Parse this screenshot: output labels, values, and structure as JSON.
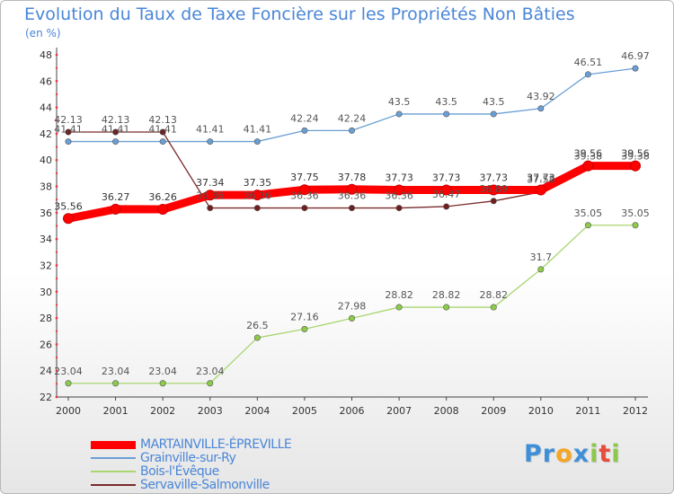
{
  "chart_data": {
    "type": "line",
    "title": "Evolution du Taux de Taxe Foncière sur les Propriétés Non Bâties",
    "subtitle": "(en %)",
    "x": [
      "2000",
      "2001",
      "2002",
      "2003",
      "2004",
      "2005",
      "2006",
      "2007",
      "2008",
      "2009",
      "2010",
      "2011",
      "2012"
    ],
    "ylim": [
      22,
      48
    ],
    "yticks": [
      22,
      24,
      26,
      28,
      30,
      32,
      34,
      36,
      38,
      40,
      42,
      44,
      46,
      48
    ],
    "grid": false,
    "series": [
      {
        "name": "MARTAINVILLE-ÉPREVILLE",
        "color": "#ff0000",
        "marker": "#ff0000",
        "emphasis": true,
        "values": [
          35.56,
          36.27,
          36.26,
          37.34,
          37.35,
          37.75,
          37.78,
          37.73,
          37.73,
          37.73,
          37.73,
          39.56,
          39.56
        ]
      },
      {
        "name": "Grainville-sur-Ry",
        "color": "#6a9fd4",
        "marker": "#6a9fd4",
        "values": [
          41.41,
          41.41,
          41.41,
          41.41,
          41.41,
          42.24,
          42.24,
          43.5,
          43.5,
          43.5,
          43.92,
          46.51,
          46.97
        ]
      },
      {
        "name": "Bois-l'Évêque",
        "color": "#a9d66f",
        "marker": "#8ccc4a",
        "values": [
          23.04,
          23.04,
          23.04,
          23.04,
          26.5,
          27.16,
          27.98,
          28.82,
          28.82,
          28.82,
          31.7,
          35.05,
          35.05
        ]
      },
      {
        "name": "Servaville-Salmonville",
        "color": "#7a2a2a",
        "marker": "#6e1f1f",
        "values": [
          42.13,
          42.13,
          42.13,
          36.36,
          36.36,
          36.36,
          36.36,
          36.36,
          36.47,
          36.89,
          37.58,
          39.38,
          39.38
        ]
      }
    ],
    "data_labels": {
      "MARTAINVILLE-ÉPREVILLE": [
        "35.56",
        "36.27",
        "36.26",
        "37.34",
        "37.35",
        "37.75",
        "37.78",
        "37.73",
        "37.73",
        "37.73",
        "37.73",
        "39.56",
        "39.56"
      ],
      "Grainville-sur-Ry": [
        "41.41",
        "41.41",
        "41.41",
        "41.41",
        "41.41",
        "42.24",
        "42.24",
        "43.5",
        "43.5",
        "43.5",
        "43.92",
        "46.51",
        "46.97"
      ],
      "Bois-l'Évêque": [
        "23.04",
        "23.04",
        "23.04",
        "23.04",
        "26.5",
        "27.16",
        "27.98",
        "28.82",
        "28.82",
        "28.82",
        "31.7",
        "35.05",
        "35.05"
      ],
      "Servaville-Salmonville": [
        "42.13",
        "42.13",
        "42.13",
        "36.36",
        "36.36",
        "36.36",
        "36.36",
        "36.36",
        "36.47",
        "36.89",
        "37.58",
        "39.38",
        "39.38"
      ]
    },
    "legend": [
      "MARTAINVILLE-ÉPREVILLE",
      "Grainville-sur-Ry",
      "Bois-l'Évêque",
      "Servaville-Salmonville"
    ]
  },
  "brand": {
    "name": "Proxiti",
    "letters": [
      {
        "char": "P",
        "color": "#3f8fd8"
      },
      {
        "char": "r",
        "color": "#3f8fd8"
      },
      {
        "char": "o",
        "color": "#f5a623"
      },
      {
        "char": "x",
        "color": "#3f8fd8"
      },
      {
        "char": "i",
        "color": "#8cc84b"
      },
      {
        "char": "t",
        "color": "#e74c3c"
      },
      {
        "char": "i",
        "color": "#8cc84b"
      }
    ]
  }
}
